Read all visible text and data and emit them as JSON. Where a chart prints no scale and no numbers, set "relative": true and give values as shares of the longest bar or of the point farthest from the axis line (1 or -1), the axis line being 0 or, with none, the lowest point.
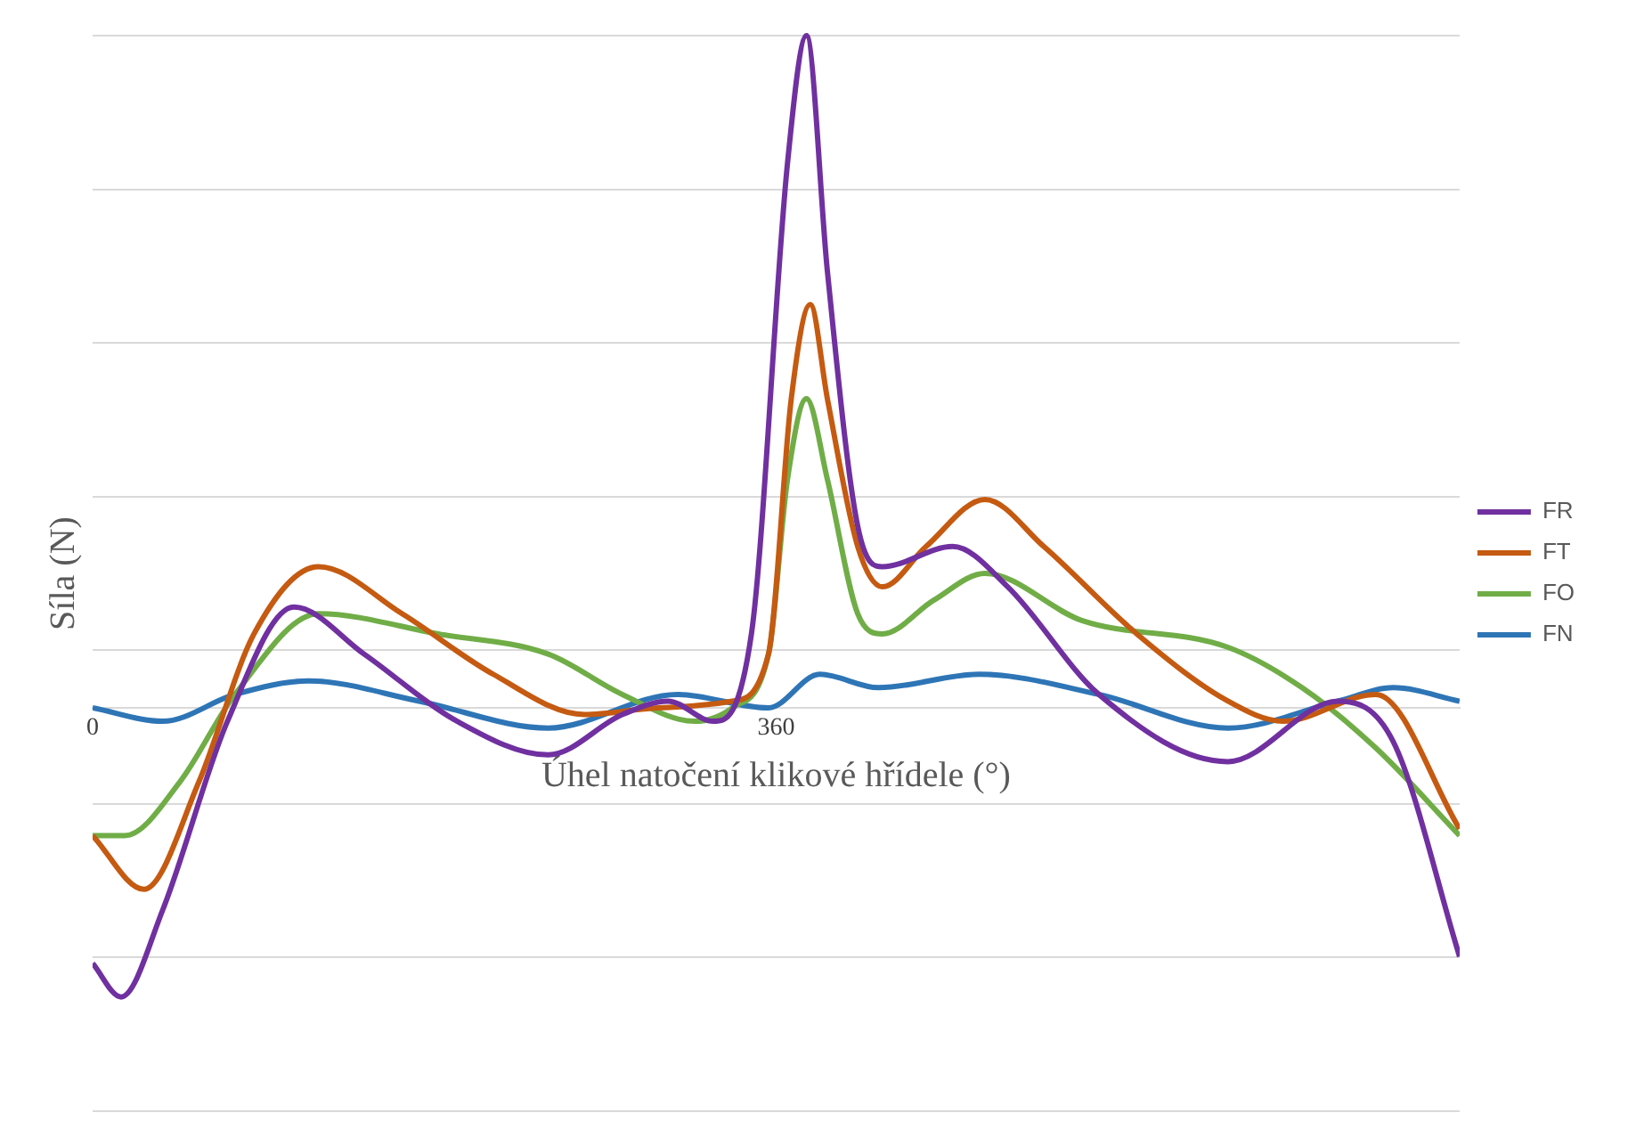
{
  "chart_data": {
    "type": "line",
    "relative": true,
    "xlabel": "Úhel natočení klikové hřídele (°)",
    "ylabel": "Síla (N)",
    "xlim": [
      0,
      720
    ],
    "xticks": [
      0,
      360
    ],
    "grid": "y",
    "legend": "right",
    "marker": "none",
    "line_style": "solid",
    "series": [
      {
        "name": "FR",
        "color": "#7030a0",
        "x": [
          0,
          15,
          37,
          71,
          106,
          143,
          192,
          240,
          279,
          303,
          327,
          347,
          366,
          376,
          387,
          403,
          416,
          453,
          482,
          530,
          598,
          656,
          685,
          720
        ],
        "values": [
          -0.38,
          -0.43,
          -0.3,
          -0.02,
          0.15,
          0.08,
          -0.02,
          -0.07,
          -0.01,
          0.01,
          -0.02,
          0.11,
          0.81,
          1,
          0.65,
          0.27,
          0.21,
          0.24,
          0.18,
          0.02,
          -0.08,
          0.01,
          -0.05,
          -0.37
        ]
      },
      {
        "name": "FT",
        "color": "#c55a11",
        "x": [
          0,
          27,
          56,
          85,
          119,
          163,
          211,
          259,
          298,
          337,
          356,
          368,
          378,
          387,
          403,
          416,
          439,
          470,
          501,
          550,
          598,
          627,
          676,
          720
        ],
        "values": [
          -0.19,
          -0.27,
          -0.11,
          0.11,
          0.21,
          0.14,
          0.05,
          -0.01,
          0,
          0.01,
          0.08,
          0.46,
          0.6,
          0.46,
          0.24,
          0.18,
          0.24,
          0.31,
          0.24,
          0.11,
          0.01,
          -0.02,
          0.02,
          -0.18
        ]
      },
      {
        "name": "FO",
        "color": "#70ad47",
        "x": [
          0,
          17,
          46,
          75,
          119,
          182,
          240,
          279,
          317,
          337,
          356,
          366,
          376,
          387,
          403,
          416,
          443,
          470,
          521,
          598,
          637,
          676,
          720
        ],
        "values": [
          -0.19,
          -0.19,
          -0.11,
          0.02,
          0.14,
          0.11,
          0.08,
          0.02,
          -0.02,
          0,
          0.08,
          0.34,
          0.46,
          0.34,
          0.14,
          0.11,
          0.16,
          0.2,
          0.13,
          0.09,
          0.03,
          -0.06,
          -0.19
        ]
      },
      {
        "name": "FN",
        "color": "#2e75b6",
        "x": [
          0,
          37,
          75,
          114,
          172,
          240,
          308,
          356,
          383,
          414,
          467,
          530,
          598,
          656,
          685,
          720
        ],
        "values": [
          0,
          -0.02,
          0.02,
          0.04,
          0.01,
          -0.03,
          0.02,
          0,
          0.05,
          0.03,
          0.05,
          0.02,
          -0.03,
          0.01,
          0.03,
          0.01
        ]
      }
    ]
  }
}
